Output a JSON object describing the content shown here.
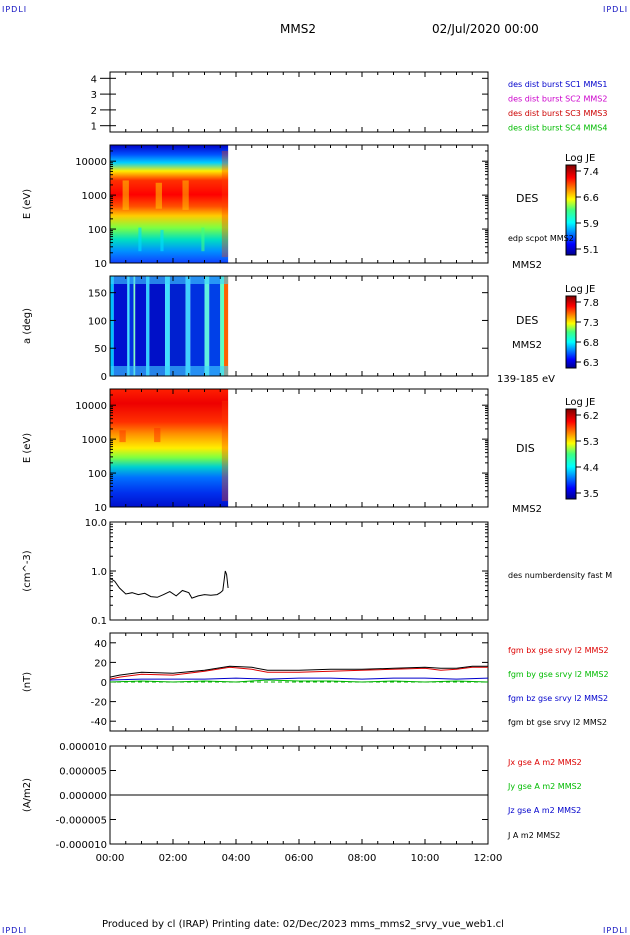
{
  "page": {
    "corner_label": "IPDLI",
    "spacecraft": "MMS2",
    "date_time": "02/Jul/2020 00:00",
    "footer": "Produced by cl (IRAP)   Printing date: 02/Dec/2023   mms_mms2_srvy_vue_web1.cl"
  },
  "chart_data": [
    {
      "type": "table",
      "panel": "burst-intervals",
      "yticks": [
        "1",
        "2",
        "3",
        "4"
      ],
      "ylim": [
        0.6,
        4.4
      ],
      "legend": [
        {
          "label": "des dist burst SC1 MMS1",
          "color": "#0000cc"
        },
        {
          "label": "des dist burst SC2 MMS2",
          "color": "#cc00cc"
        },
        {
          "label": "des dist burst SC3 MMS3",
          "color": "#cc0000"
        },
        {
          "label": "des dist burst SC4 MMS4",
          "color": "#00bb00"
        }
      ]
    },
    {
      "type": "heatmap",
      "panel": "des-energy-spectrogram",
      "ylabel": "E (eV)",
      "yscale": "log",
      "ylim": [
        10,
        30000
      ],
      "yticks": [
        "10",
        "100",
        "1000",
        "10000"
      ],
      "data_time_range": [
        "00:00",
        "03:45"
      ],
      "instrument_label": "DES",
      "overlay_label": "edp scpot MMS2",
      "spacecraft_label": "MMS2",
      "colorbar": {
        "title": "Log JE",
        "ticks": [
          "7.4",
          "6.6",
          "5.9",
          "5.1"
        ],
        "range": [
          5.1,
          7.4
        ]
      }
    },
    {
      "type": "heatmap",
      "panel": "des-pitch-angle",
      "ylabel": "a (deg)",
      "ylim": [
        0,
        180
      ],
      "yticks": [
        "0",
        "50",
        "100",
        "150"
      ],
      "data_time_range": [
        "00:00",
        "03:45"
      ],
      "instrument_label": "DES",
      "spacecraft_label": "MMS2",
      "energy_range_label": "139-185 eV",
      "colorbar": {
        "title": "Log JE",
        "ticks": [
          "7.8",
          "7.3",
          "6.8",
          "6.3"
        ],
        "range": [
          6.3,
          7.8
        ]
      }
    },
    {
      "type": "heatmap",
      "panel": "dis-energy-spectrogram",
      "ylabel": "E (eV)",
      "yscale": "log",
      "ylim": [
        10,
        30000
      ],
      "yticks": [
        "10",
        "100",
        "1000",
        "10000"
      ],
      "data_time_range": [
        "00:00",
        "03:45"
      ],
      "instrument_label": "DIS",
      "spacecraft_label": "MMS2",
      "colorbar": {
        "title": "Log JE",
        "ticks": [
          "6.2",
          "5.3",
          "4.4",
          "3.5"
        ],
        "range": [
          3.5,
          6.2
        ]
      }
    },
    {
      "type": "line",
      "panel": "density",
      "ylabel": "(cm^-3)",
      "yscale": "log",
      "ylim": [
        0.1,
        10.0
      ],
      "yticks": [
        "0.1",
        "1.0",
        "10.0"
      ],
      "series": [
        {
          "name": "des numberdensity fast M",
          "color": "#000000",
          "x": [
            0,
            0.05,
            0.15,
            0.3,
            0.5,
            0.7,
            0.9,
            1.1,
            1.3,
            1.5,
            1.7,
            1.9,
            2.1,
            2.3,
            2.5,
            2.6,
            2.8,
            3.0,
            3.2,
            3.4,
            3.5,
            3.58,
            3.62,
            3.66,
            3.7,
            3.75
          ],
          "y": [
            0.7,
            0.68,
            0.62,
            0.45,
            0.34,
            0.36,
            0.33,
            0.35,
            0.3,
            0.29,
            0.33,
            0.38,
            0.31,
            0.4,
            0.36,
            0.28,
            0.31,
            0.33,
            0.32,
            0.33,
            0.36,
            0.4,
            0.62,
            1.0,
            0.85,
            0.45
          ]
        }
      ]
    },
    {
      "type": "line",
      "panel": "magnetic-field",
      "ylabel": "(nT)",
      "ylim": [
        -50,
        50
      ],
      "yticks": [
        "-40",
        "-20",
        "0",
        "20",
        "40"
      ],
      "series": [
        {
          "name": "fgm bx gse srvy l2 MMS2",
          "color": "#dd0000",
          "x": [
            0,
            0.3,
            1,
            2,
            3,
            3.8,
            4.5,
            5,
            6,
            7,
            8,
            9,
            10,
            10.5,
            11,
            11.5,
            12
          ],
          "y": [
            3,
            5,
            8,
            7,
            11,
            15,
            13,
            10,
            10,
            11,
            12,
            13,
            14,
            12,
            13,
            15,
            15
          ]
        },
        {
          "name": "fgm by gse srvy l2 MMS2",
          "color": "#00bb00",
          "x": [
            0,
            1,
            2,
            3,
            4,
            5,
            6,
            7,
            8,
            9,
            10,
            11,
            12
          ],
          "y": [
            0,
            1,
            0,
            1,
            0,
            2,
            1,
            1,
            0,
            1,
            0,
            1,
            0
          ]
        },
        {
          "name": "fgm bz gse srvy l2 MMS2",
          "color": "#0000cc",
          "x": [
            0,
            1,
            2,
            3,
            4,
            5,
            6,
            7,
            8,
            9,
            10,
            11,
            12
          ],
          "y": [
            2,
            3,
            3,
            3,
            4,
            3,
            4,
            4,
            3,
            4,
            4,
            3,
            4
          ]
        },
        {
          "name": "fgm bt gse srvy l2 MMS2",
          "color": "#000000",
          "x": [
            0,
            0.3,
            1,
            2,
            3,
            3.8,
            4.5,
            5,
            6,
            7,
            8,
            9,
            10,
            10.5,
            11,
            11.5,
            12
          ],
          "y": [
            5,
            7,
            10,
            9,
            12,
            16,
            15,
            12,
            12,
            13,
            13,
            14,
            15,
            14,
            14,
            16,
            16
          ]
        }
      ]
    },
    {
      "type": "line",
      "panel": "current-density",
      "ylabel": "(A/m2)",
      "ylim": [
        -1e-05,
        1e-05
      ],
      "yticks": [
        "-0.000010",
        "-0.000005",
        "0.000000",
        "0.000005",
        "0.000010"
      ],
      "series": [
        {
          "name": "Jx gse A m2 MMS2",
          "color": "#dd0000",
          "x": [
            0,
            12
          ],
          "y": [
            0,
            0
          ]
        },
        {
          "name": "Jy gse A m2 MMS2",
          "color": "#00bb00",
          "x": [
            0,
            12
          ],
          "y": [
            0,
            0
          ]
        },
        {
          "name": "Jz gse A m2 MMS2",
          "color": "#0000cc",
          "x": [
            0,
            12
          ],
          "y": [
            0,
            0
          ]
        },
        {
          "name": "J A m2 MMS2",
          "color": "#000000",
          "x": [
            0,
            12
          ],
          "y": [
            0,
            0
          ]
        }
      ]
    }
  ],
  "x_axis": {
    "range_hours": [
      0,
      12
    ],
    "ticks": [
      {
        "value": 0,
        "label": "00:00"
      },
      {
        "value": 2,
        "label": "02:00"
      },
      {
        "value": 4,
        "label": "04:00"
      },
      {
        "value": 6,
        "label": "06:00"
      },
      {
        "value": 8,
        "label": "08:00"
      },
      {
        "value": 10,
        "label": "10:00"
      },
      {
        "value": 12,
        "label": "12:00"
      }
    ]
  }
}
